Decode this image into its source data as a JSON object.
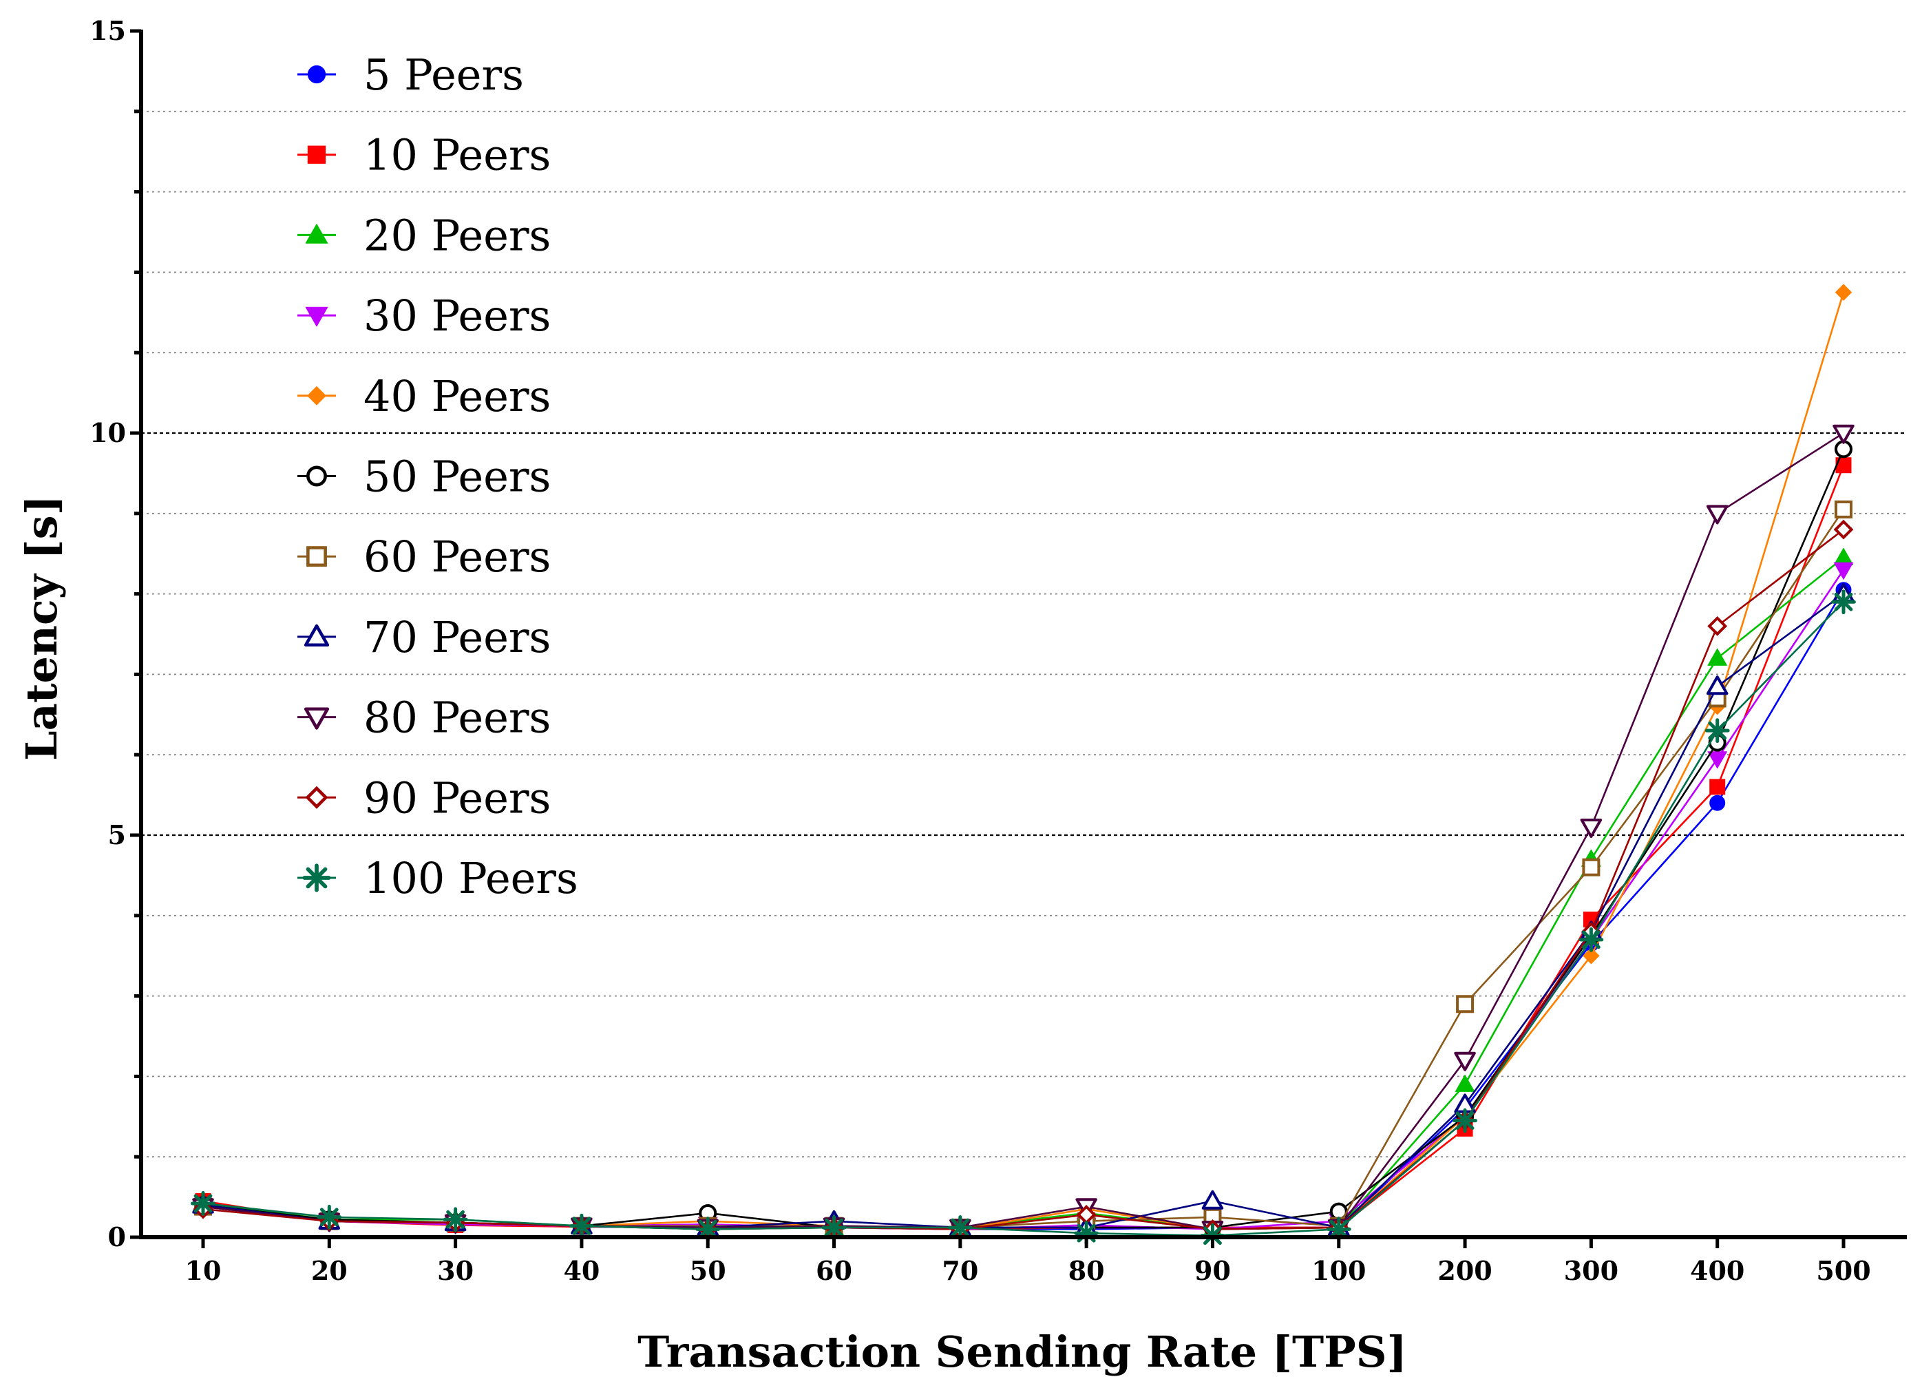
{
  "chart_data": {
    "type": "line",
    "title": "",
    "xlabel": "Transaction Sending Rate [TPS]",
    "ylabel": "Latency [s]",
    "categories": [
      "10",
      "20",
      "30",
      "40",
      "50",
      "60",
      "70",
      "80",
      "90",
      "100",
      "200",
      "300",
      "400",
      "500"
    ],
    "ylim": [
      0,
      15
    ],
    "y_major_ticks": [
      "0",
      "5",
      "10",
      "15"
    ],
    "y_minor_step": 1,
    "grid": "horizontal dotted, dashed at major ticks",
    "legend_position": "top-left",
    "series": [
      {
        "name": "5 Peers",
        "color": "#0000ff",
        "marker": "circle-filled",
        "values": [
          0.38,
          0.2,
          0.16,
          0.13,
          0.12,
          0.12,
          0.1,
          0.1,
          0.12,
          0.12,
          1.6,
          3.65,
          5.4,
          8.05
        ]
      },
      {
        "name": "10 Peers",
        "color": "#ff0000",
        "marker": "square-filled",
        "values": [
          0.45,
          0.2,
          0.15,
          0.13,
          0.14,
          0.12,
          0.1,
          0.12,
          0.12,
          0.12,
          1.35,
          3.95,
          5.6,
          9.6
        ]
      },
      {
        "name": "20 Peers",
        "color": "#00c000",
        "marker": "triangle-up-filled",
        "values": [
          0.42,
          0.22,
          0.22,
          0.14,
          0.1,
          0.12,
          0.12,
          0.3,
          0.1,
          0.12,
          1.9,
          4.7,
          7.2,
          8.45
        ]
      },
      {
        "name": "30 Peers",
        "color": "#bf00ff",
        "marker": "triangle-down-filled",
        "values": [
          0.38,
          0.2,
          0.16,
          0.14,
          0.16,
          0.12,
          0.1,
          0.15,
          0.1,
          0.2,
          1.5,
          3.7,
          5.95,
          8.3
        ]
      },
      {
        "name": "40 Peers",
        "color": "#ff8000",
        "marker": "diamond-filled",
        "values": [
          0.4,
          0.2,
          0.18,
          0.14,
          0.2,
          0.14,
          0.1,
          0.35,
          0.1,
          0.12,
          1.5,
          3.5,
          6.6,
          11.75
        ]
      },
      {
        "name": "50 Peers",
        "color": "#000000",
        "marker": "circle-open",
        "values": [
          0.4,
          0.22,
          0.18,
          0.14,
          0.3,
          0.12,
          0.12,
          0.12,
          0.12,
          0.32,
          1.5,
          3.75,
          6.15,
          9.8
        ]
      },
      {
        "name": "60 Peers",
        "color": "#8b5a1a",
        "marker": "square-open",
        "values": [
          0.38,
          0.2,
          0.18,
          0.14,
          0.14,
          0.14,
          0.12,
          0.2,
          0.25,
          0.14,
          2.9,
          4.6,
          6.7,
          9.05
        ]
      },
      {
        "name": "70 Peers",
        "color": "#000080",
        "marker": "triangle-up-open",
        "values": [
          0.4,
          0.2,
          0.18,
          0.14,
          0.12,
          0.2,
          0.12,
          0.12,
          0.45,
          0.12,
          1.65,
          3.8,
          6.85,
          8.0
        ]
      },
      {
        "name": "80 Peers",
        "color": "#4b0040",
        "marker": "triangle-down-open",
        "values": [
          0.38,
          0.2,
          0.18,
          0.14,
          0.12,
          0.14,
          0.12,
          0.38,
          0.1,
          0.12,
          2.2,
          5.1,
          9.0,
          10.0
        ]
      },
      {
        "name": "90 Peers",
        "color": "#a00000",
        "marker": "diamond-open",
        "values": [
          0.35,
          0.2,
          0.18,
          0.14,
          0.1,
          0.12,
          0.1,
          0.28,
          0.1,
          0.12,
          1.45,
          3.8,
          7.6,
          8.8
        ]
      },
      {
        "name": "100 Peers",
        "color": "#00704a",
        "marker": "asterisk",
        "values": [
          0.42,
          0.25,
          0.22,
          0.14,
          0.1,
          0.12,
          0.12,
          0.05,
          0.02,
          0.1,
          1.45,
          3.7,
          6.3,
          7.9
        ]
      }
    ]
  }
}
